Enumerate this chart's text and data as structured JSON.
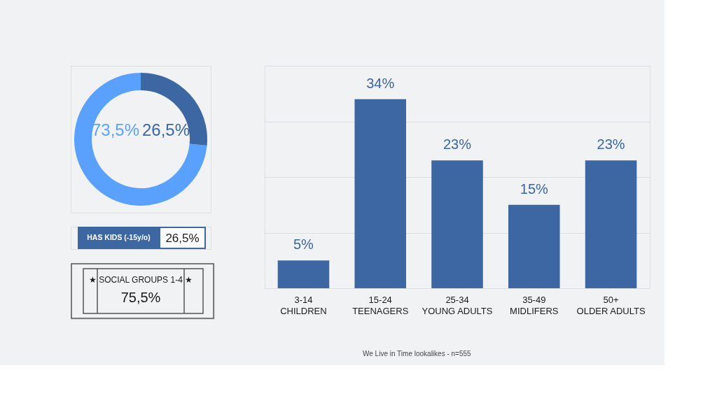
{
  "chart_data": [
    {
      "type": "donut",
      "categories": [
        null,
        null
      ],
      "values": [
        73.5,
        26.5
      ],
      "colors": [
        "#5aa1fd",
        "#3d67a3"
      ],
      "value_labels": [
        "73,5%",
        "26,5%"
      ]
    },
    {
      "type": "other",
      "annotations": [
        "HAS KIDS (-15y/o)",
        "26,5%"
      ]
    },
    {
      "type": "other",
      "annotations": [
        "★ SOCIAL GROUPS 1-4 ★",
        "75,5%"
      ]
    },
    {
      "type": "bar",
      "categories": [
        "3-14\nCHILDREN",
        "15-24\nTEENAGERS",
        "25-34\nYOUNG ADULTS",
        "35-49\nMIDLIFERS",
        "50+\nOLDER ADULTS"
      ],
      "values": [
        5,
        34,
        23,
        15,
        23
      ],
      "color": "#3d67a3",
      "value_labels": [
        "5%",
        "34%",
        "23%",
        "15%",
        "23%"
      ],
      "ylim": [
        0,
        40
      ],
      "yticks": [
        {
          "value": 0,
          "label": null
        },
        {
          "value": 10,
          "label": null
        },
        {
          "value": 20,
          "label": null
        },
        {
          "value": 30,
          "label": null
        },
        {
          "value": 40,
          "label": null
        }
      ],
      "grid": "y",
      "tick_labels": "x",
      "annotations": [
        "We Live in Time lookalikes - n=555"
      ]
    }
  ]
}
